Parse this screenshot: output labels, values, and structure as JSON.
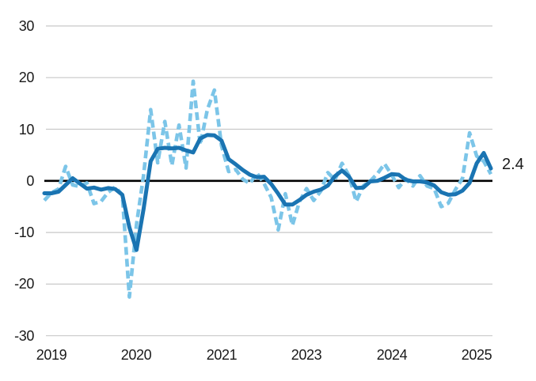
{
  "chart_data": {
    "type": "line",
    "y_axis": {
      "tick_labels": [
        "30",
        "20",
        "10",
        "0",
        "-10",
        "-20",
        "-30"
      ],
      "tick_values": [
        30,
        20,
        10,
        0,
        -10,
        -20,
        -30
      ],
      "range": [
        -30,
        30
      ],
      "zero_baseline": true
    },
    "x_axis": {
      "ticks": [
        {
          "label": "2019",
          "index": 1
        },
        {
          "label": "2020",
          "index": 13
        },
        {
          "label": "2021",
          "index": 25
        },
        {
          "label": "2023",
          "index": 37
        },
        {
          "label": "2024",
          "index": 49
        },
        {
          "label": "2025",
          "index": 61
        }
      ]
    },
    "grid": "horizontal-only",
    "legend": "none",
    "series": [
      {
        "id": "dashed-light-blue",
        "style": "dashed",
        "color": "#7cc5e8",
        "values": [
          -3.8,
          -2.3,
          -1.6,
          2.8,
          -0.8,
          -1.1,
          -0.4,
          -4.4,
          -4.0,
          -2.2,
          -1.2,
          -2.7,
          -22.5,
          -8.5,
          1.0,
          13.8,
          3.5,
          11.5,
          3.0,
          10.8,
          2.5,
          19.3,
          7.0,
          13.8,
          17.6,
          6.8,
          1.8,
          2.2,
          0.3,
          -0.5,
          1.5,
          -0.5,
          -3.2,
          -9.5,
          -2.5,
          -8.6,
          -4.0,
          -1.5,
          -3.8,
          -2.0,
          1.6,
          0.2,
          3.4,
          1.0,
          -4.0,
          -1.0,
          0.0,
          1.4,
          3.3,
          1.2,
          -1.3,
          0.4,
          -1.0,
          1.0,
          -1.0,
          -1.5,
          -5.0,
          -4.3,
          -1.7,
          0.5,
          9.3,
          4.8,
          3.8,
          1.3
        ]
      },
      {
        "id": "solid-dark-blue",
        "style": "solid",
        "color": "#1a74b2",
        "values": [
          -2.4,
          -2.4,
          -2.1,
          -0.8,
          0.5,
          -0.5,
          -1.5,
          -1.3,
          -1.7,
          -1.4,
          -1.6,
          -2.7,
          -9.0,
          -13.4,
          -5.5,
          3.8,
          6.2,
          6.4,
          6.3,
          6.4,
          5.9,
          5.5,
          8.2,
          8.9,
          8.8,
          7.8,
          4.2,
          3.2,
          2.1,
          1.2,
          0.7,
          0.8,
          -0.6,
          -2.5,
          -4.6,
          -4.6,
          -3.7,
          -2.7,
          -2.1,
          -1.7,
          -0.9,
          0.9,
          2.0,
          0.8,
          -1.4,
          -1.3,
          -0.1,
          0.0,
          0.6,
          1.3,
          1.2,
          0.2,
          -0.1,
          -0.1,
          -0.3,
          -0.9,
          -2.2,
          -2.7,
          -2.6,
          -1.9,
          -0.4,
          3.4,
          5.4,
          2.4
        ]
      }
    ],
    "end_label": {
      "text": "2.4"
    },
    "colors": {
      "grid": "#c9c9c9",
      "zero_line": "#000000",
      "text": "#1a1a1a",
      "background": "#ffffff"
    }
  }
}
